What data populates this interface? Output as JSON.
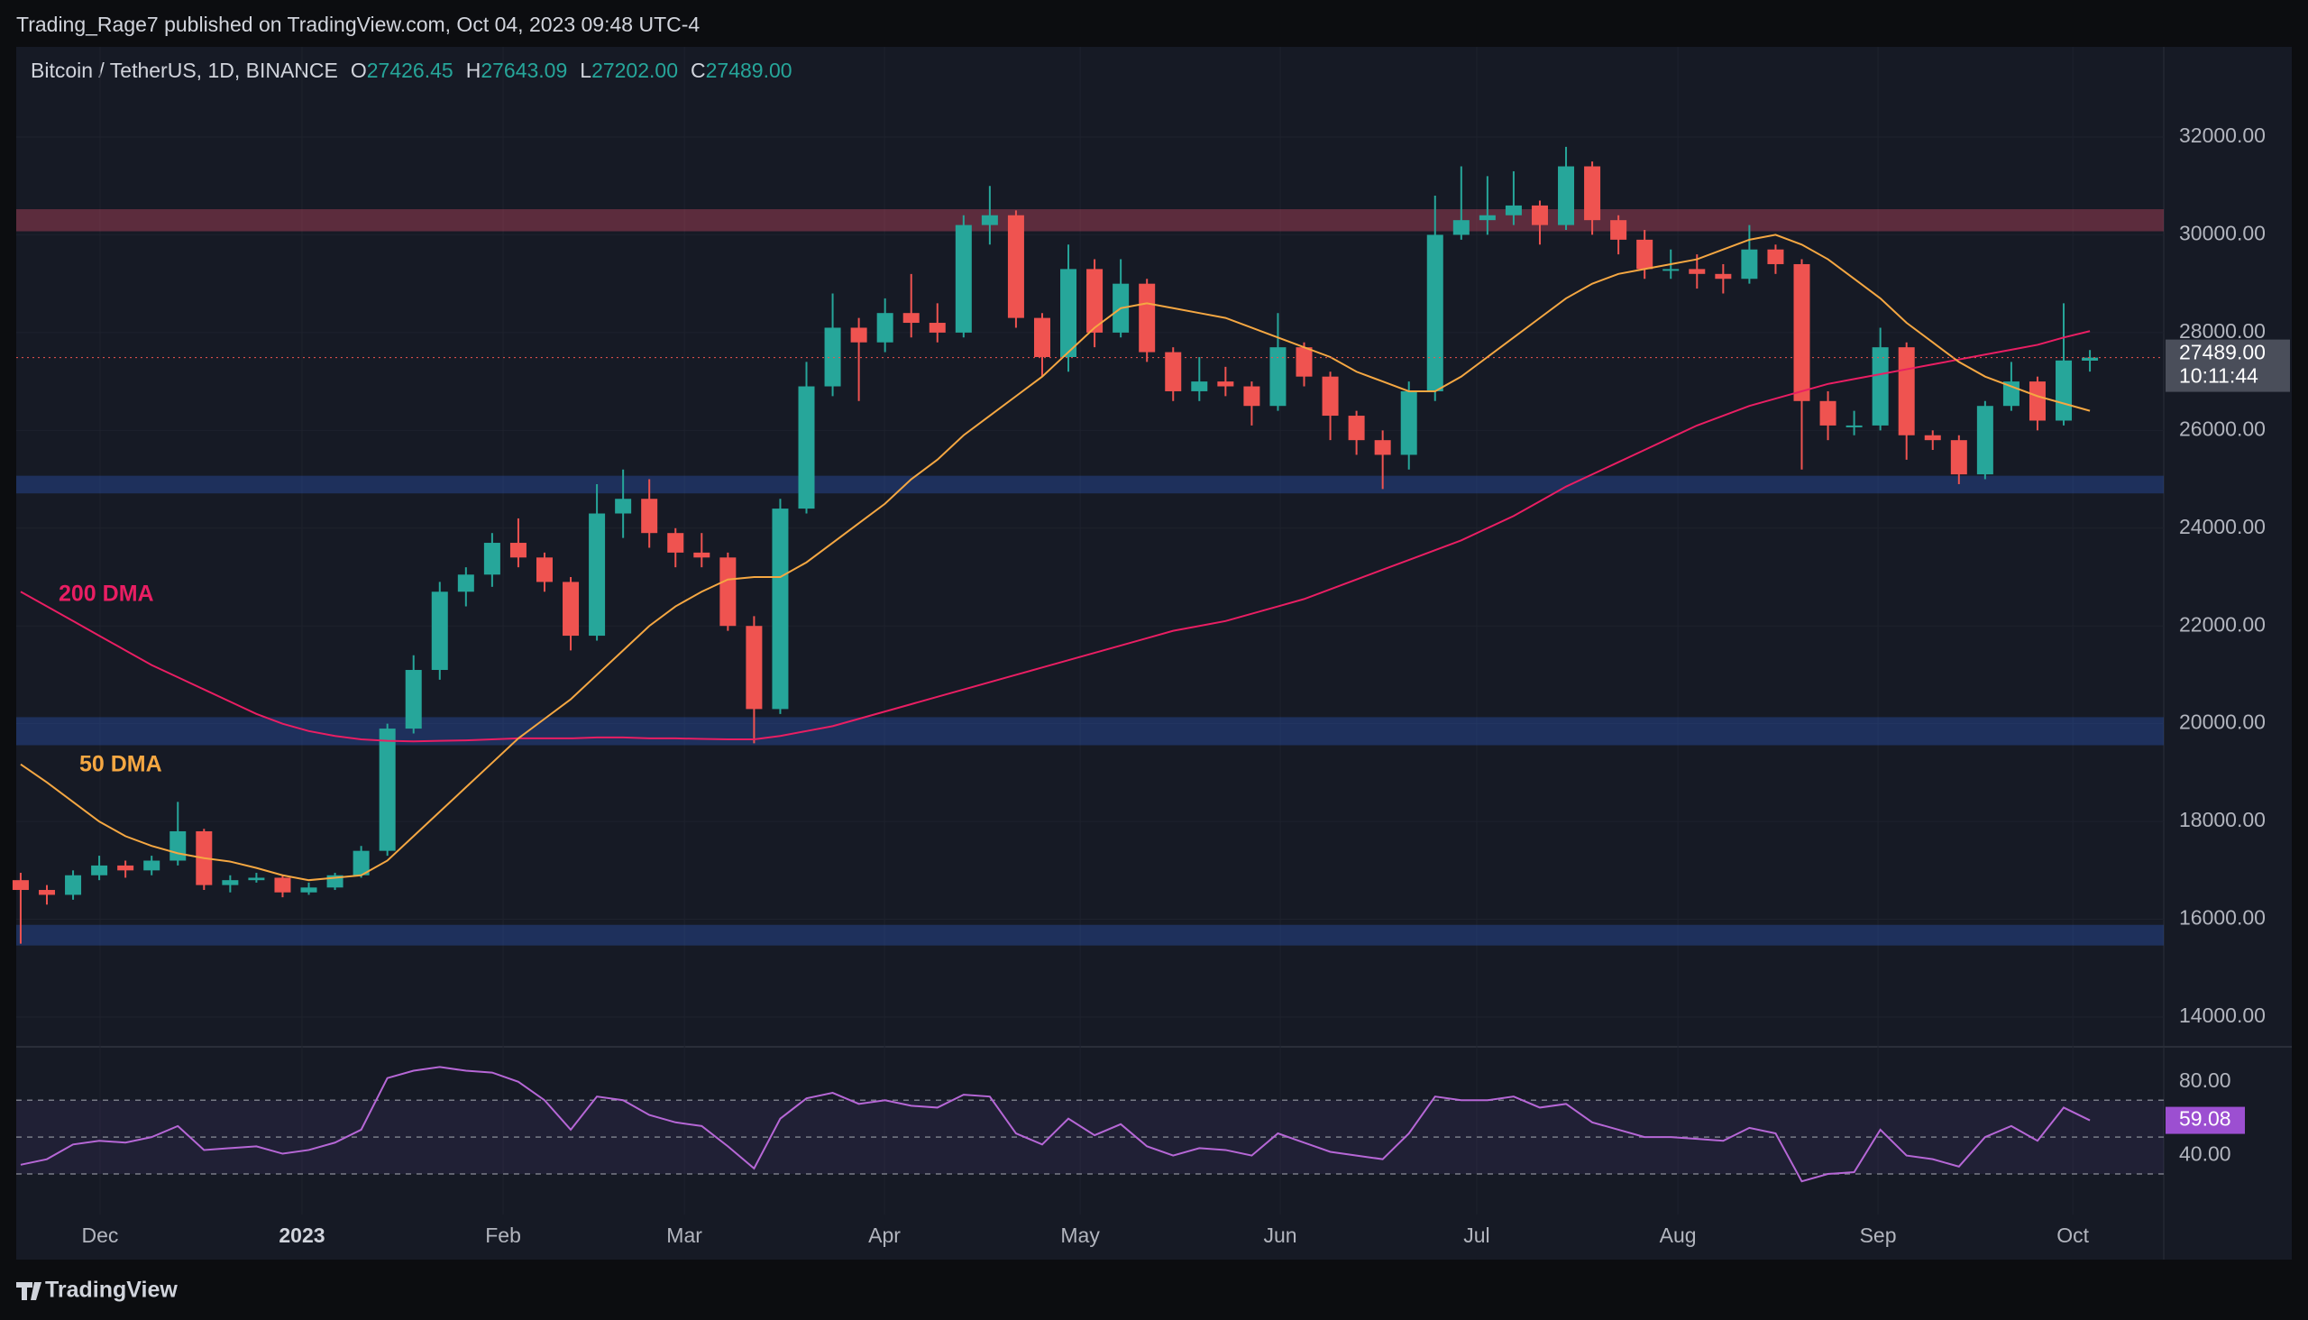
{
  "header": {
    "publisher": "Trading_Rage7 published on TradingView.com, Oct 04, 2023 09:48 UTC-4",
    "brand": "TradingView"
  },
  "chart_data": {
    "type": "candlestick",
    "legend": {
      "symbol": "Bitcoin / TetherUS, 1D, BINANCE",
      "keys": [
        "O",
        "H",
        "L",
        "C"
      ],
      "values": [
        "27426.45",
        "27643.09",
        "27202.00",
        "27489.00"
      ]
    },
    "up_color": "#26a69a",
    "down_color": "#ef5350",
    "xlim": [
      -0.17,
      81.82
    ],
    "xticks": [
      {
        "value": 3.03,
        "label": "Dec"
      },
      {
        "value": 10.74,
        "label": "2023"
      },
      {
        "value": 18.42,
        "label": "Feb"
      },
      {
        "value": 25.34,
        "label": "Mar"
      },
      {
        "value": 32.98,
        "label": "Apr"
      },
      {
        "value": 40.45,
        "label": "May"
      },
      {
        "value": 48.09,
        "label": "Jun"
      },
      {
        "value": 55.59,
        "label": "Jul"
      },
      {
        "value": 63.27,
        "label": "Aug"
      },
      {
        "value": 70.91,
        "label": "Sep"
      },
      {
        "value": 78.35,
        "label": "Oct"
      }
    ],
    "ylim": [
      13410,
      33844
    ],
    "yticks": [
      {
        "value": 14000,
        "label": "14000.00"
      },
      {
        "value": 16000,
        "label": "16000.00"
      },
      {
        "value": 18000,
        "label": "18000.00"
      },
      {
        "value": 20000,
        "label": "20000.00"
      },
      {
        "value": 22000,
        "label": "22000.00"
      },
      {
        "value": 24000,
        "label": "24000.00"
      },
      {
        "value": 26000,
        "label": "26000.00"
      },
      {
        "value": 28000,
        "label": "28000.00"
      },
      {
        "value": 30000,
        "label": "30000.00"
      },
      {
        "value": 32000,
        "label": "32000.00"
      }
    ],
    "zones": [
      {
        "color": "#e0506a",
        "range": [
          30072,
          30524
        ]
      },
      {
        "color": "#2f5bc4",
        "range": [
          24711,
          25072
        ]
      },
      {
        "color": "#2f5bc4",
        "range": [
          19560,
          20134
        ]
      },
      {
        "color": "#2f5bc4",
        "range": [
          15464,
          15886
        ]
      }
    ],
    "open": [
      16800,
      16600,
      16500,
      16900,
      17100,
      17000,
      17200,
      17800,
      16700,
      16800,
      16850,
      16550,
      16650,
      16900,
      17400,
      19900,
      21100,
      22700,
      23050,
      23700,
      23400,
      22900,
      21800,
      24300,
      24600,
      23900,
      23500,
      23400,
      22000,
      20300,
      24400,
      26900,
      28100,
      27800,
      28400,
      28200,
      28000,
      30200,
      30400,
      28300,
      27500,
      29300,
      28000,
      29000,
      27600,
      26800,
      27000,
      26900,
      26500,
      27700,
      27100,
      26300,
      25800,
      25500,
      26800,
      30000,
      30300,
      30400,
      30600,
      30200,
      31400,
      30300,
      29900,
      29300,
      29300,
      29200,
      29100,
      29700,
      29400,
      26600,
      26100,
      26100,
      27700,
      25900,
      25800,
      25100,
      26500,
      27000,
      26200,
      27426.45
    ],
    "high": [
      16950,
      16700,
      17000,
      17300,
      17200,
      17300,
      18400,
      17850,
      16900,
      16950,
      16900,
      16750,
      16950,
      17500,
      20000,
      21400,
      22900,
      23200,
      23900,
      24200,
      23500,
      23000,
      24900,
      25200,
      25000,
      24000,
      23900,
      23500,
      22200,
      24600,
      27400,
      28800,
      28300,
      28700,
      29200,
      28600,
      30400,
      31000,
      30500,
      28400,
      29800,
      29500,
      29500,
      29100,
      27700,
      27500,
      27300,
      27000,
      28400,
      27800,
      27200,
      26400,
      26000,
      27000,
      30800,
      31400,
      31200,
      31300,
      30700,
      31800,
      31500,
      30400,
      30100,
      29700,
      29600,
      29400,
      30200,
      29800,
      29500,
      26800,
      26400,
      28100,
      27800,
      26000,
      25900,
      26600,
      27400,
      27100,
      28600,
      27643.09
    ],
    "low": [
      15500,
      16300,
      16400,
      16800,
      16850,
      16900,
      17100,
      16600,
      16550,
      16750,
      16450,
      16500,
      16600,
      16850,
      17300,
      19800,
      20900,
      22400,
      22800,
      23200,
      22700,
      21500,
      21700,
      23800,
      23600,
      23200,
      23200,
      21900,
      19600,
      20200,
      24300,
      26700,
      26600,
      27600,
      27900,
      27800,
      27900,
      29800,
      28100,
      27100,
      27200,
      27700,
      27900,
      27400,
      26600,
      26600,
      26700,
      26100,
      26400,
      26900,
      25800,
      25500,
      24800,
      25200,
      26600,
      29900,
      30000,
      30200,
      29800,
      30100,
      30000,
      29600,
      29100,
      29100,
      28900,
      28800,
      29000,
      29200,
      25200,
      25800,
      25900,
      26000,
      25400,
      25600,
      24900,
      25000,
      26400,
      26000,
      26100,
      27202
    ],
    "close": [
      16600,
      16500,
      16900,
      17100,
      17000,
      17200,
      17800,
      16700,
      16800,
      16850,
      16550,
      16650,
      16900,
      17400,
      19900,
      21100,
      22700,
      23050,
      23700,
      23400,
      22900,
      21800,
      24300,
      24600,
      23900,
      23500,
      23400,
      22000,
      20300,
      24400,
      26900,
      28100,
      27800,
      28400,
      28200,
      28000,
      30200,
      30400,
      28300,
      27500,
      29300,
      28000,
      29000,
      27600,
      26800,
      27000,
      26900,
      26500,
      27700,
      27100,
      26300,
      25800,
      25500,
      26800,
      30000,
      30300,
      30400,
      30600,
      30200,
      31400,
      30300,
      29900,
      29300,
      29300,
      29200,
      29100,
      29700,
      29400,
      26600,
      26100,
      26100,
      27700,
      25900,
      25800,
      25100,
      26500,
      27000,
      26200,
      27430,
      27489
    ],
    "last_price": {
      "value": 27489,
      "label": "27489.00",
      "countdown": "10:11:44"
    },
    "ma": [
      {
        "name": "200 DMA",
        "color": "#e91e63",
        "values": [
          22700,
          22400,
          22100,
          21800,
          21500,
          21200,
          20950,
          20700,
          20450,
          20200,
          20000,
          19850,
          19750,
          19680,
          19650,
          19640,
          19650,
          19660,
          19680,
          19700,
          19700,
          19700,
          19720,
          19720,
          19700,
          19700,
          19690,
          19680,
          19680,
          19750,
          19850,
          19950,
          20100,
          20250,
          20400,
          20550,
          20700,
          20850,
          21000,
          21150,
          21300,
          21450,
          21600,
          21750,
          21900,
          22000,
          22100,
          22250,
          22400,
          22550,
          22750,
          22950,
          23150,
          23350,
          23550,
          23750,
          24000,
          24250,
          24550,
          24850,
          25100,
          25350,
          25600,
          25850,
          26100,
          26300,
          26500,
          26650,
          26800,
          26950,
          27050,
          27150,
          27250,
          27350,
          27450,
          27550,
          27650,
          27750,
          27900,
          28030
        ]
      },
      {
        "name": "50 DMA",
        "color": "#f5a742",
        "values": [
          19170,
          18800,
          18400,
          18000,
          17700,
          17500,
          17350,
          17250,
          17180,
          17050,
          16900,
          16800,
          16850,
          16900,
          17200,
          17700,
          18200,
          18700,
          19200,
          19700,
          20100,
          20500,
          21000,
          21500,
          22000,
          22400,
          22700,
          22950,
          23000,
          23000,
          23300,
          23700,
          24100,
          24500,
          25000,
          25400,
          25900,
          26300,
          26700,
          27100,
          27600,
          28100,
          28500,
          28600,
          28500,
          28400,
          28300,
          28100,
          27900,
          27700,
          27500,
          27200,
          27000,
          26800,
          26800,
          27100,
          27500,
          27900,
          28300,
          28700,
          29000,
          29200,
          29300,
          29400,
          29500,
          29700,
          29900,
          30000,
          29800,
          29500,
          29100,
          28700,
          28200,
          27800,
          27400,
          27100,
          26900,
          26700,
          26550,
          26400
        ]
      }
    ],
    "rsi": {
      "color": "#b667d6",
      "ylim": [
        8,
        98
      ],
      "yticks": [
        {
          "value": 40,
          "label": "40.00"
        },
        {
          "value": 80,
          "label": "80.00"
        }
      ],
      "band": [
        30,
        70
      ],
      "mid": 50,
      "values": [
        35,
        38,
        46,
        48,
        47,
        50,
        56,
        43,
        44,
        45,
        41,
        43,
        47,
        54,
        82,
        86,
        88,
        86,
        85,
        80,
        70,
        54,
        72,
        70,
        62,
        58,
        56,
        45,
        33,
        60,
        71,
        74,
        68,
        70,
        67,
        66,
        73,
        72,
        52,
        46,
        60,
        51,
        57,
        45,
        40,
        44,
        43,
        40,
        52,
        47,
        42,
        40,
        38,
        52,
        72,
        70,
        70,
        72,
        66,
        68,
        58,
        54,
        50,
        50,
        49,
        48,
        55,
        52,
        26,
        30,
        31,
        54,
        40,
        38,
        34,
        50,
        56,
        48,
        66,
        59.08
      ]
    }
  }
}
